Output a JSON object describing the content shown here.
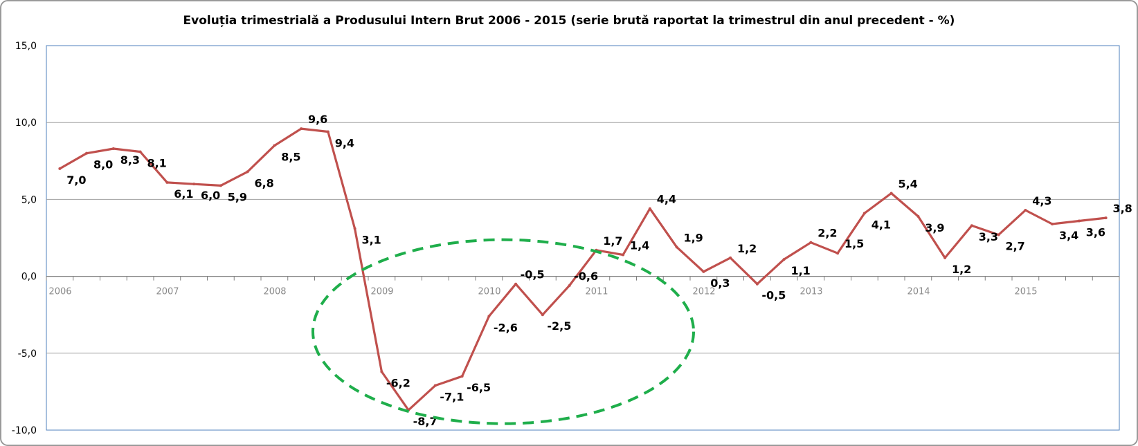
{
  "chart_data": {
    "type": "line",
    "title": "Evoluția trimestrială a Produsului Intern Brut 2006 - 2015 (serie brută raportat la trimestrul din anul precedent - %)",
    "xlabel": "",
    "ylabel": "",
    "ylim": [
      -10,
      15
    ],
    "yticks": [
      15,
      10,
      5,
      0,
      -5,
      -10
    ],
    "ytick_labels": [
      "15,0",
      "10,0",
      "5,0",
      "0,0",
      "-5,0",
      "-10,0"
    ],
    "x_year_labels": [
      "2006",
      "2007",
      "2008",
      "2009",
      "2010",
      "2011",
      "2012",
      "2013",
      "2014",
      "2015"
    ],
    "grid": true,
    "legend": "none",
    "series": [
      {
        "color": "#c0504d",
        "values": [
          7.0,
          8.0,
          8.3,
          8.1,
          6.1,
          6.0,
          5.9,
          6.8,
          8.5,
          9.6,
          9.4,
          3.1,
          -6.2,
          -8.7,
          -7.1,
          -6.5,
          -2.6,
          -0.5,
          -2.5,
          -0.6,
          1.7,
          1.4,
          4.4,
          1.9,
          0.3,
          1.2,
          -0.5,
          1.1,
          2.2,
          1.5,
          4.1,
          5.4,
          3.9,
          1.2,
          3.3,
          2.7,
          4.3,
          3.4,
          3.6,
          3.8
        ],
        "labels": [
          "7,0",
          "8,0",
          "8,3",
          "8,1",
          "6,1",
          "6,0",
          "5,9",
          "6,8",
          "8,5",
          "9,6",
          "9,4",
          "3,1",
          "-6,2",
          "-8,7",
          "-7,1",
          "-6,5",
          "-2,6",
          "-0,5",
          "-2,5",
          "-0,6",
          "1,7",
          "1,4",
          "4,4",
          "1,9",
          "0,3",
          "1,2",
          "-0,5",
          "1,1",
          "2,2",
          "1,5",
          "4,1",
          "5,4",
          "3,9",
          "1,2",
          "3,3",
          "2,7",
          "4,3",
          "3,4",
          "3,6",
          "3,8"
        ]
      }
    ],
    "annotation": {
      "shape": "dashed-ellipse",
      "color": "#1fae4b"
    },
    "colors": {
      "frame": "#9a9a9a",
      "plot_border": "#4f81bd",
      "grid": "#a0a0a0",
      "axis": "#808080"
    }
  }
}
